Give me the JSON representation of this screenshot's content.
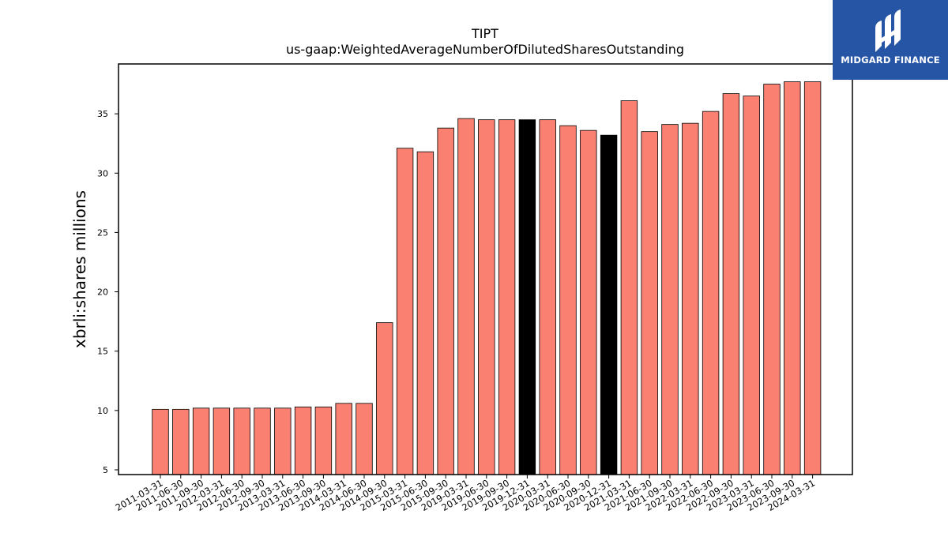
{
  "chart_data": {
    "type": "bar",
    "title": "TIPT",
    "subtitle": "us-gaap:WeightedAverageNumberOfDilutedSharesOutstanding",
    "xlabel": "",
    "ylabel": "xbrli:shares millions",
    "ylim": [
      4.6,
      39.2
    ],
    "yticks": [
      5,
      10,
      15,
      20,
      25,
      30,
      35
    ],
    "grid": false,
    "categories": [
      "2011-03-31",
      "2011-06-30",
      "2011-09-30",
      "2012-03-31",
      "2012-06-30",
      "2012-09-30",
      "2013-03-31",
      "2013-06-30",
      "2013-09-30",
      "2014-03-31",
      "2014-06-30",
      "2014-09-30",
      "2015-03-31",
      "2015-06-30",
      "2015-09-30",
      "2019-03-31",
      "2019-06-30",
      "2019-09-30",
      "2019-12-31",
      "2020-03-31",
      "2020-06-30",
      "2020-09-30",
      "2020-12-31",
      "2021-03-31",
      "2021-06-30",
      "2021-09-30",
      "2022-03-31",
      "2022-06-30",
      "2022-09-30",
      "2023-03-31",
      "2023-06-30",
      "2023-09-30",
      "2024-03-31"
    ],
    "values": [
      10.1,
      10.1,
      10.2,
      10.2,
      10.2,
      10.2,
      10.2,
      10.3,
      10.3,
      10.6,
      10.6,
      17.4,
      32.1,
      31.8,
      33.8,
      34.6,
      34.5,
      34.5,
      34.5,
      34.5,
      34.0,
      33.6,
      33.2,
      36.1,
      33.5,
      34.1,
      34.2,
      35.2,
      36.7,
      36.5,
      37.5,
      37.7,
      37.7
    ],
    "highlighted": [
      "2019-12-31",
      "2020-12-31"
    ],
    "colors": {
      "bar": "#fa8072",
      "highlight": "#000000",
      "edge": "#000000"
    }
  },
  "logo": {
    "text": "MIDGARD FINANCE",
    "background": "#2755a6"
  }
}
